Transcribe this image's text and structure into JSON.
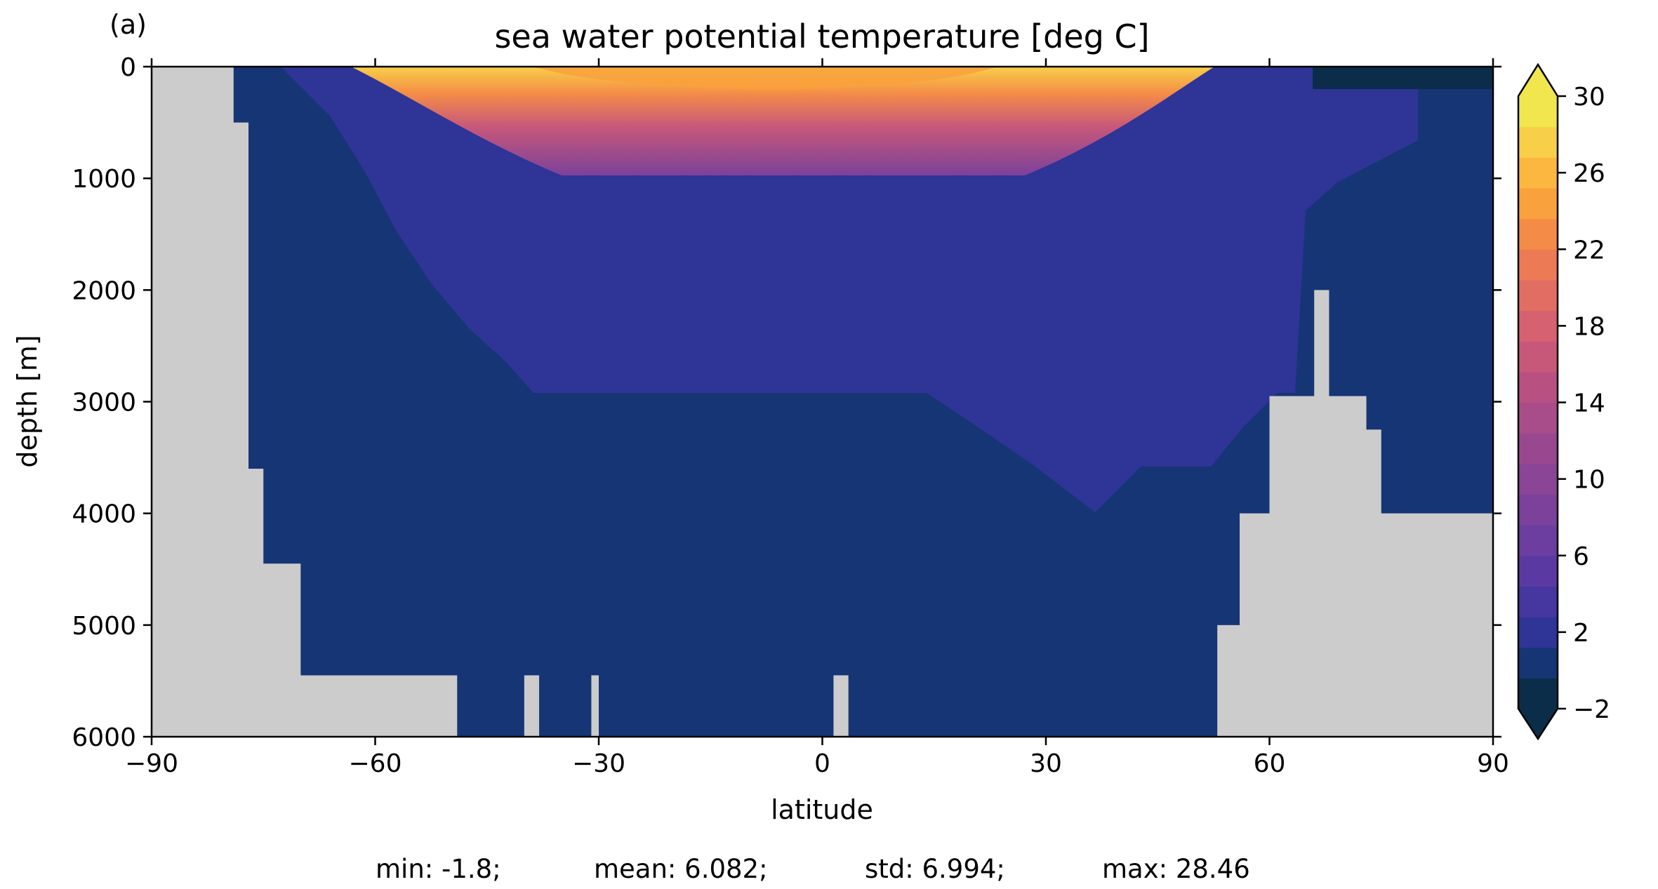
{
  "chart_data": {
    "type": "heatmap",
    "panel_label": "(a)",
    "title": "sea water potential temperature [deg C]",
    "xlabel": "latitude",
    "ylabel": "depth [m]",
    "xlim": [
      -90,
      90
    ],
    "ylim": [
      6000,
      0
    ],
    "y_inverted": true,
    "x_ticks": [
      "−90",
      "−60",
      "−30",
      "0",
      "30",
      "60",
      "90"
    ],
    "y_ticks": [
      "0",
      "1000",
      "2000",
      "3000",
      "4000",
      "5000",
      "6000"
    ],
    "colorbar": {
      "tick_labels": [
        "−2",
        "2",
        "6",
        "10",
        "14",
        "18",
        "22",
        "26",
        "30"
      ],
      "range": [
        -2,
        30
      ],
      "interval": 2,
      "extend": "both",
      "colors": [
        "#0b2d4a",
        "#163575",
        "#2f3497",
        "#45379f",
        "#5a3aa2",
        "#6b3e9f",
        "#7b419b",
        "#8a4596",
        "#994890",
        "#a94c8a",
        "#b85182",
        "#c8587a",
        "#d66170",
        "#e26d63",
        "#ec7b55",
        "#f48c47",
        "#f9a13c",
        "#fbb73f",
        "#f8cf48",
        "#f1e64e"
      ]
    },
    "land_color": "#cccccc",
    "land_profile": {
      "latitude": [
        -90,
        -80,
        -79,
        -78,
        -77,
        -76,
        -75,
        -74,
        -73,
        -72,
        -71,
        -70,
        -69,
        -68,
        -67,
        -66,
        -65,
        -64,
        -63,
        -62,
        -61,
        -60,
        -59,
        -58,
        -57,
        -56,
        -55,
        -54,
        -53,
        -52,
        -51,
        -50,
        -49,
        -40,
        -38,
        -31,
        -30,
        -3,
        -1,
        52,
        53,
        55,
        56,
        57,
        58,
        59,
        60,
        61,
        62,
        63,
        64,
        65,
        66,
        67,
        68,
        69,
        70,
        71,
        72,
        73,
        74,
        75,
        80,
        81,
        82,
        83,
        84,
        85,
        86,
        90
      ],
      "bottom_depth_m": [
        0,
        0,
        500,
        500,
        3600,
        3600,
        4450,
        4450,
        4450,
        4450,
        4450,
        5450,
        5450,
        5450,
        5450,
        5450,
        5450,
        5450,
        5450,
        5450,
        5450,
        5450,
        5450,
        5450,
        5450,
        5450,
        5450,
        5450,
        5450,
        5450,
        5450,
        5450,
        6000,
        6000,
        6000,
        6000,
        6000,
        6000,
        6000,
        6000,
        5000,
        5000,
        4000,
        4000,
        4000,
        4000,
        2950,
        2950,
        2950,
        2950,
        2950,
        2950,
        2000,
        2000,
        2950,
        2950,
        2950,
        2950,
        2950,
        3250,
        3250,
        4000,
        4000,
        4000,
        4000,
        4000,
        4000,
        4000,
        4000,
        4000
      ],
      "seamounts": [
        {
          "latitude": [
            -40,
            -38
          ],
          "top_depth_m": 5450
        },
        {
          "latitude": [
            -31,
            -30
          ],
          "top_depth_m": 5450
        },
        {
          "latitude": [
            1.5,
            3.5
          ],
          "top_depth_m": 5450
        }
      ]
    },
    "stats": [
      {
        "name": "min",
        "text": "min: -1.8;",
        "value": -1.8
      },
      {
        "name": "mean",
        "text": "mean: 6.082;",
        "value": 6.082
      },
      {
        "name": "std",
        "text": "std: 6.994;",
        "value": 6.994
      },
      {
        "name": "max",
        "text": "max: 28.46",
        "value": 28.46
      }
    ]
  }
}
